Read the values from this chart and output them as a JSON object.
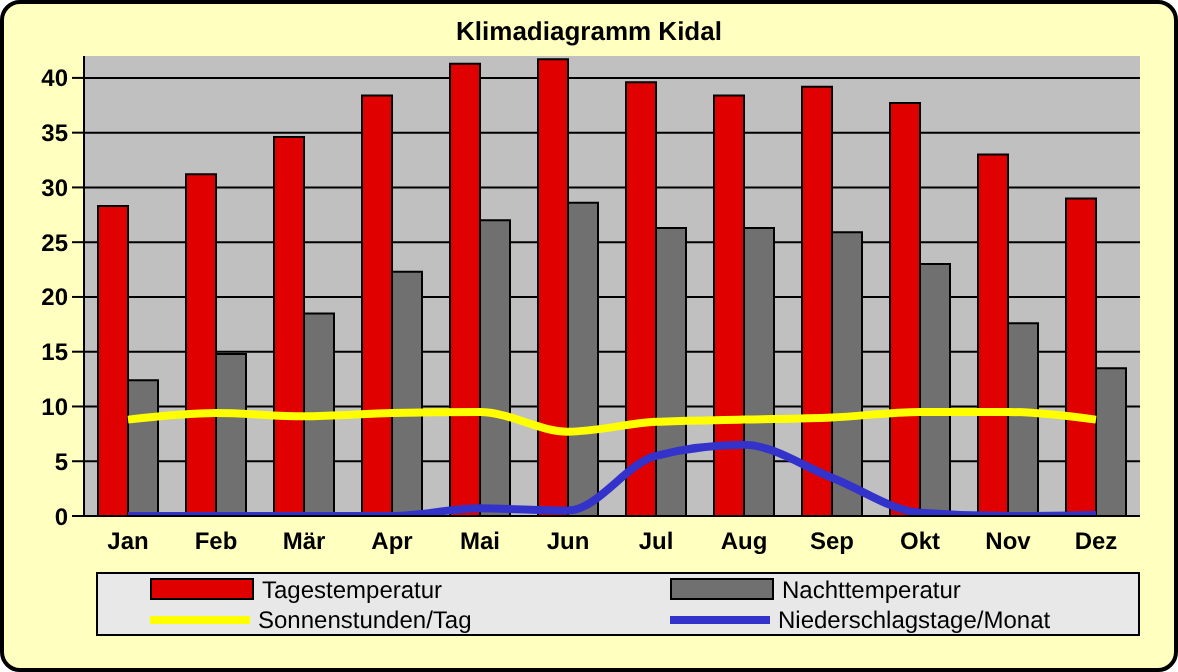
{
  "chart_data": {
    "type": "bar",
    "title": "Klimadiagramm Kidal",
    "categories": [
      "Jan",
      "Feb",
      "Mär",
      "Apr",
      "Mai",
      "Jun",
      "Jul",
      "Aug",
      "Sep",
      "Okt",
      "Nov",
      "Dez"
    ],
    "series": [
      {
        "name": "Tagestemperatur",
        "color": "#e00000",
        "values": [
          28.3,
          31.2,
          34.6,
          38.4,
          41.3,
          41.7,
          39.6,
          38.4,
          39.2,
          37.7,
          33.0,
          29.0
        ]
      },
      {
        "name": "Nachttemperatur",
        "color": "#707070",
        "values": [
          12.4,
          14.8,
          18.5,
          22.3,
          27.0,
          28.6,
          26.3,
          26.3,
          25.9,
          23.0,
          17.6,
          13.5
        ]
      },
      {
        "name": "Sonnenstunden/Tag",
        "type": "line",
        "color": "#ffff00",
        "values": [
          8.8,
          9.4,
          9.1,
          9.4,
          9.5,
          7.7,
          8.6,
          8.8,
          9.0,
          9.5,
          9.5,
          8.8
        ]
      },
      {
        "name": "Niederschlagstage/Monat",
        "type": "line",
        "color": "#3333cc",
        "values": [
          0,
          0,
          0,
          0,
          0.7,
          0.5,
          5.5,
          6.5,
          3.5,
          0.3,
          0,
          0.1
        ]
      }
    ],
    "ylim": [
      0,
      42
    ],
    "yticks": [
      0,
      5,
      10,
      15,
      20,
      25,
      30,
      35,
      40
    ],
    "grid": "y",
    "legend": "bottom",
    "marker": "none"
  }
}
